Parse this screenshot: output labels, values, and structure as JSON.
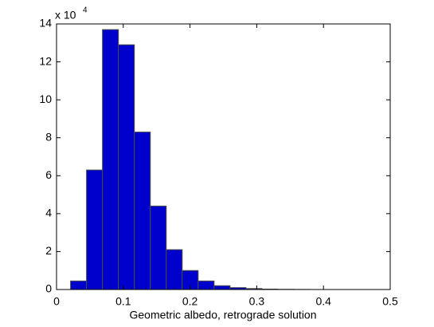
{
  "chart_data": {
    "type": "histogram",
    "x_label": "Geometric albedo, retrograde solution",
    "y_exponent_label": {
      "base": "x 10",
      "exponent": "4"
    },
    "bins": [
      0.021,
      0.0449,
      0.0688,
      0.0927,
      0.1166,
      0.1405,
      0.1644,
      0.1883,
      0.2122,
      0.2361,
      0.26,
      0.2839,
      0.3078,
      0.3317,
      0.3556,
      0.3795,
      0.4034,
      0.4273,
      0.4512,
      0.4751,
      0.499
    ],
    "values": [
      0.45,
      6.3,
      13.7,
      12.9,
      8.3,
      4.4,
      2.1,
      1.0,
      0.45,
      0.2,
      0.1,
      0.05,
      0.02,
      0.01,
      0.005,
      0,
      0,
      0,
      0,
      0
    ],
    "color": "#0000cc",
    "edge_color": "#4a4a4a",
    "xlim": [
      0,
      0.5
    ],
    "xticks": [
      0,
      0.1,
      0.2,
      0.3,
      0.4,
      0.5
    ],
    "ylim": [
      0,
      14
    ],
    "yticks": [
      0,
      2,
      4,
      6,
      8,
      10,
      12,
      14
    ],
    "grid": false
  }
}
